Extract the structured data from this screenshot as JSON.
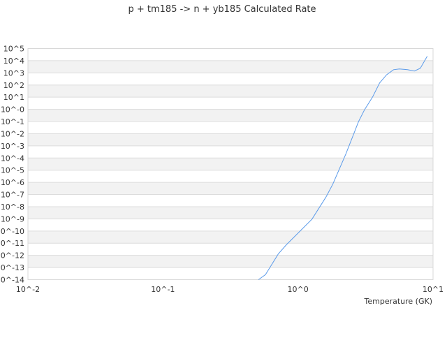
{
  "chart_data": {
    "type": "line",
    "title": "p + tm185 -> n + yb185 Calculated Rate",
    "xlabel": "Temperature (GK)",
    "ylabel": "",
    "x_scale": "log",
    "y_scale": "log",
    "xlim": [
      0.01,
      10
    ],
    "ylim": [
      1e-14,
      100000.0
    ],
    "x_ticks": [
      "10^-2",
      "10^-1",
      "10^0",
      "10^1"
    ],
    "y_ticks": [
      "10^5",
      "10^4",
      "10^3",
      "10^2",
      "10^1",
      "10^-0",
      "10^-1",
      "10^-2",
      "10^-3",
      "10^-4",
      "10^-5",
      "10^-6",
      "10^-7",
      "10^-8",
      "10^-9",
      "10^-10",
      "10^-11",
      "10^-12",
      "10^-13",
      "10^-14"
    ],
    "grid": "alternating horizontal bands",
    "line_color": "#5b9bea",
    "band_color": "#f2f2f2",
    "series": [
      {
        "x": [
          0.509,
          0.574,
          0.714,
          0.82,
          1.27,
          1.61,
          1.81,
          2.26,
          2.81,
          3.11,
          3.57,
          4.02,
          4.53,
          5.1,
          5.63,
          6.47,
          7.28,
          8.05,
          9.06
        ],
        "y": [
          1e-14,
          2.6e-14,
          1.3e-12,
          7.4e-12,
          9.5e-10,
          6.2e-08,
          7.1e-07,
          0.00021,
          0.1,
          0.93,
          10.5,
          148,
          692,
          1820,
          2090,
          1820,
          1410,
          2400,
          23400
        ]
      }
    ]
  }
}
